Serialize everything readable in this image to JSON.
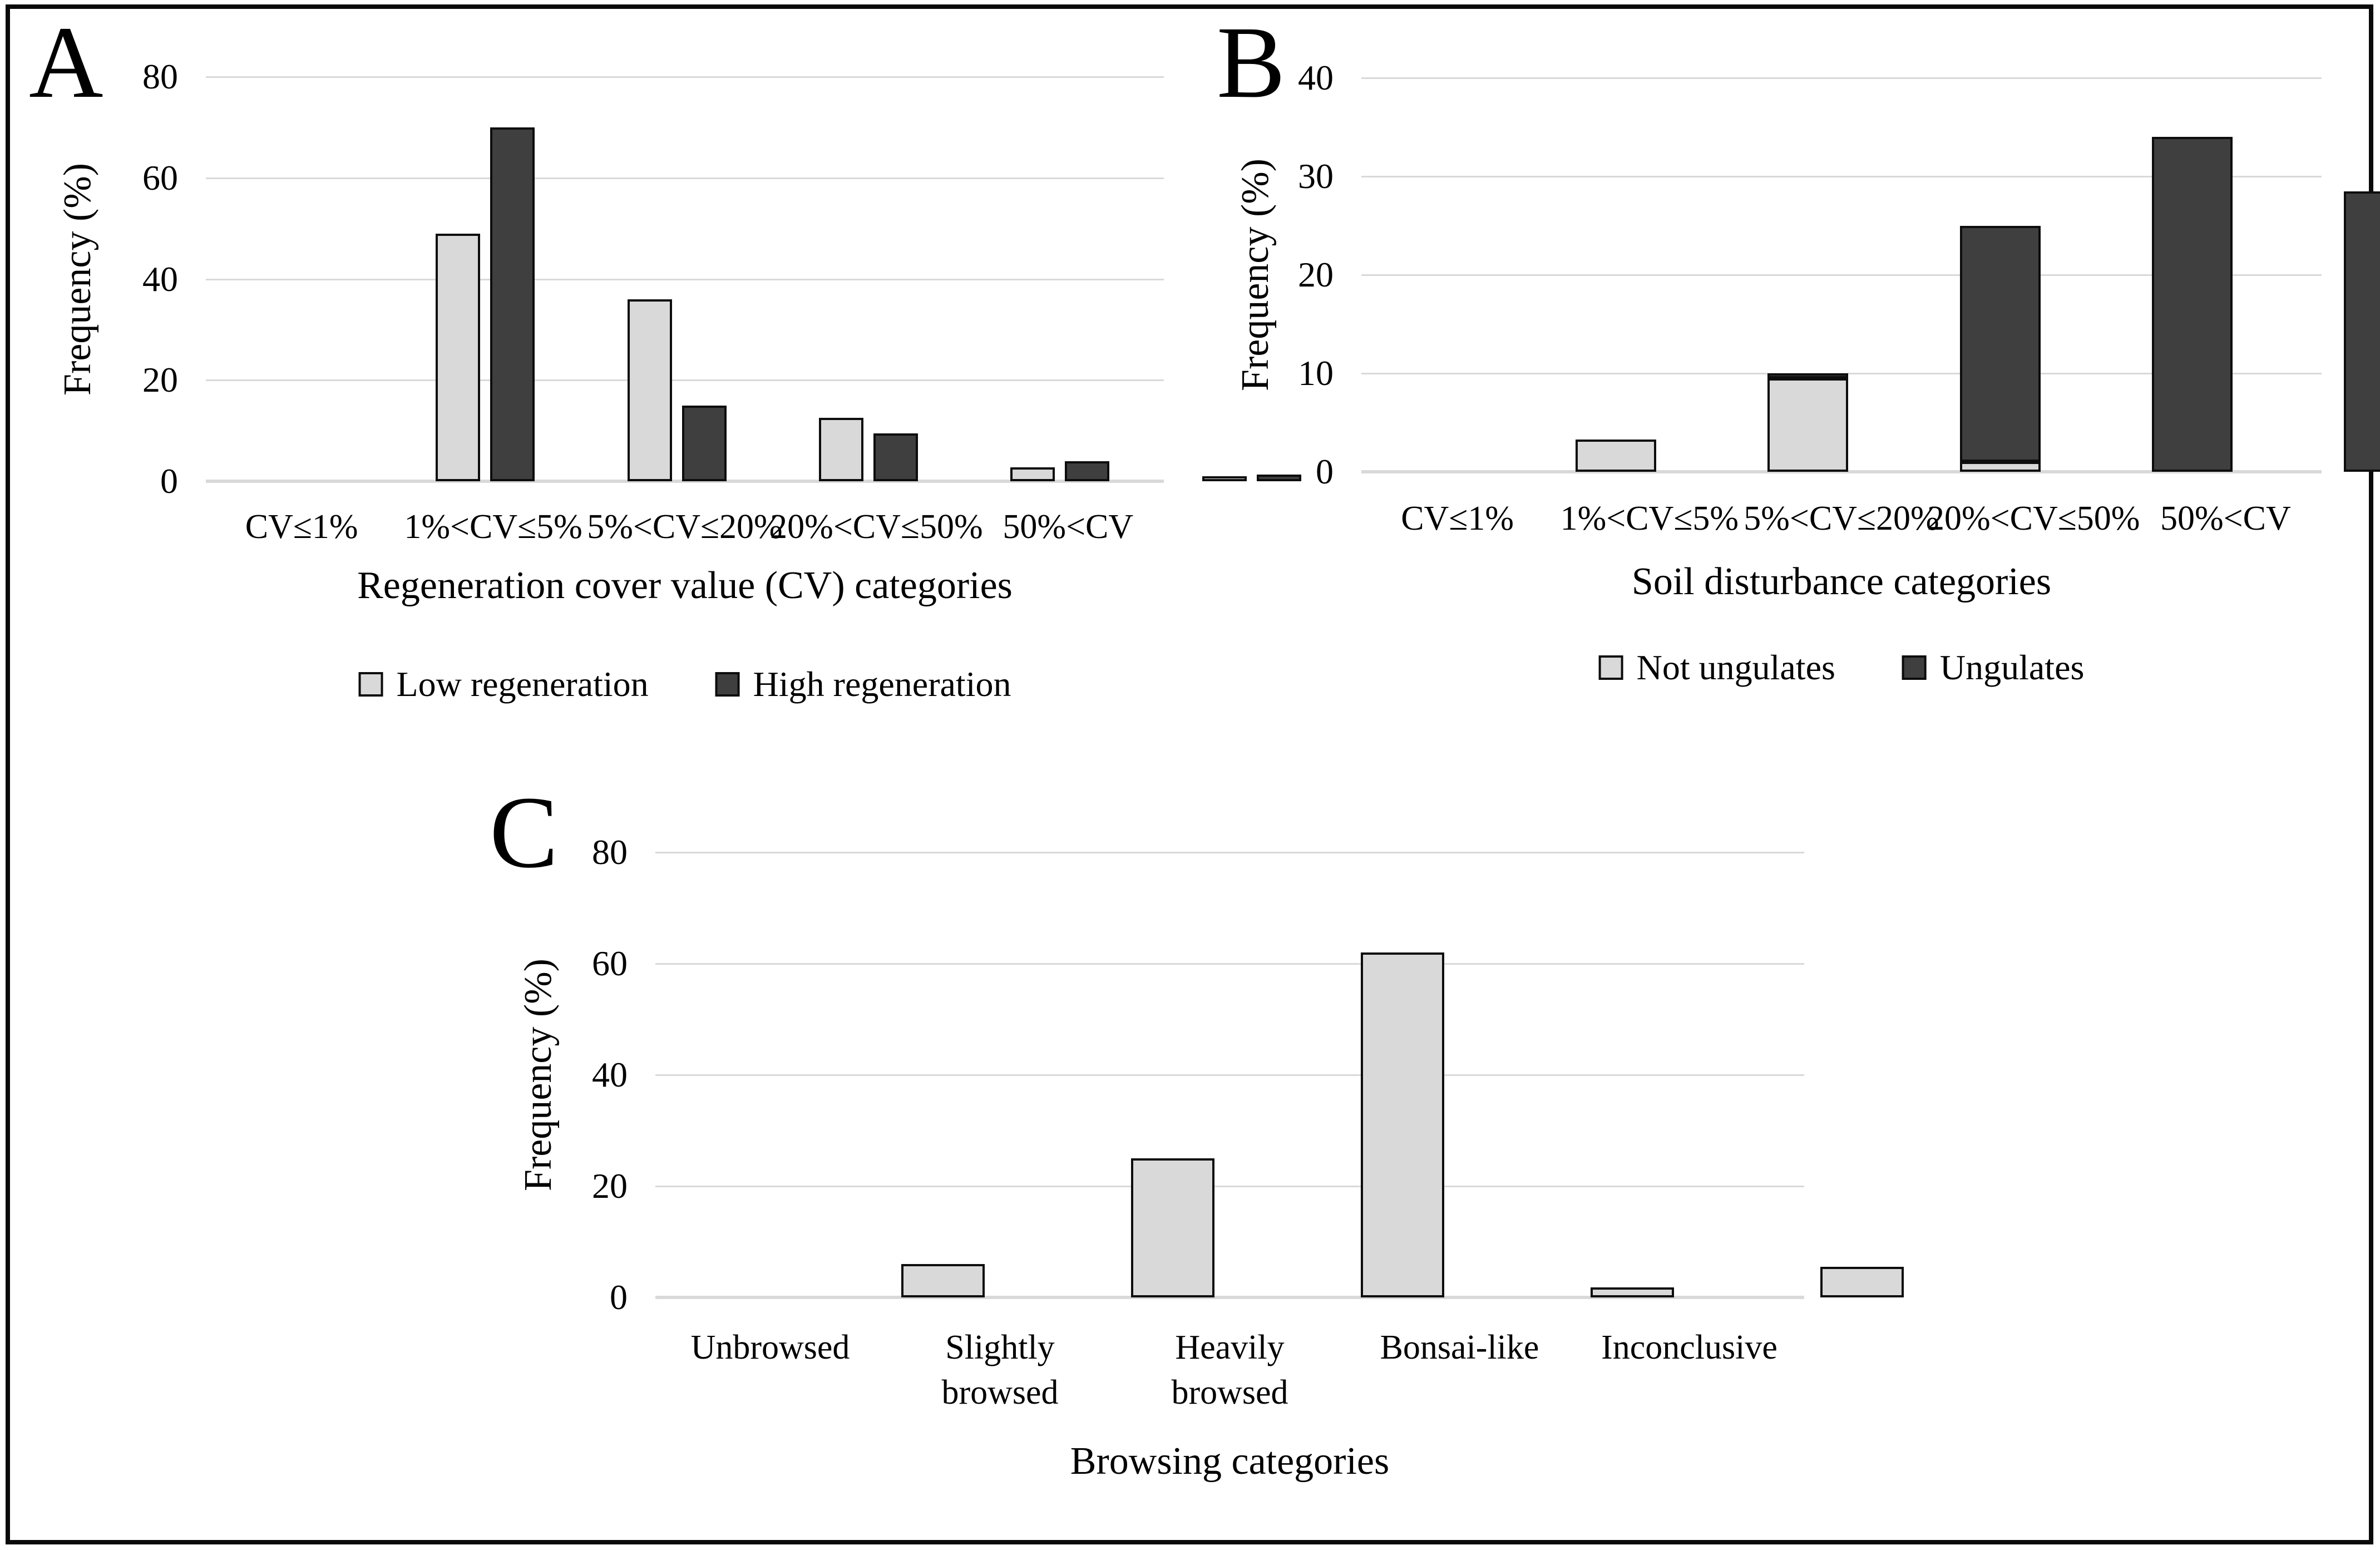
{
  "figure": {
    "background": "#ffffff",
    "frame_border_color": "#0a0a0a"
  },
  "colors": {
    "light": "#d9d9d9",
    "dark": "#3f3f3f",
    "bar_border": "#0d0d0d",
    "gridline": "#d9d9d9",
    "text": "#000000"
  },
  "chart_data": [
    {
      "panel_label": "A",
      "type": "bar",
      "title": "",
      "ylabel": "Frequency (%)",
      "xlabel": "Regeneration cover value (CV) categories",
      "ylim": [
        0,
        80
      ],
      "yticks": [
        0,
        20,
        40,
        60,
        80
      ],
      "grid": true,
      "legend_position": "bottom",
      "categories": [
        "CV≤1%",
        "1%<CV≤5%",
        "5%<CV≤20%",
        "20%<CV≤50%",
        "50%<CV"
      ],
      "series": [
        {
          "name": "Low regeneration",
          "color": "light",
          "values": [
            49,
            36,
            12.5,
            2.7,
            0.6
          ]
        },
        {
          "name": "High regeneration",
          "color": "dark",
          "values": [
            70,
            15,
            9.5,
            4,
            1.3
          ]
        }
      ]
    },
    {
      "panel_label": "B",
      "type": "stacked-bar",
      "title": "",
      "ylabel": "Frequency (%)",
      "xlabel": "Soil disturbance categories",
      "ylim": [
        0,
        40
      ],
      "yticks": [
        0,
        10,
        20,
        30,
        40
      ],
      "grid": true,
      "legend_position": "bottom",
      "categories": [
        "CV≤1%",
        "1%<CV≤5%",
        "5%<CV≤20%",
        "20%<CV≤50%",
        "50%<CV"
      ],
      "series": [
        {
          "name": "Not ungulates",
          "color": "light",
          "values": [
            3.3,
            9.5,
            1,
            0,
            0
          ]
        },
        {
          "name": "Ungulates",
          "color": "dark",
          "values": [
            0,
            0.4,
            24,
            34,
            28.5
          ]
        }
      ]
    },
    {
      "panel_label": "C",
      "type": "bar",
      "title": "",
      "ylabel": "Frequency (%)",
      "xlabel": "Browsing categories",
      "ylim": [
        0,
        80
      ],
      "yticks": [
        0,
        20,
        40,
        60,
        80
      ],
      "grid": true,
      "legend_position": "none",
      "categories": [
        "Unbrowsed",
        "Slightly browsed",
        "Heavily browsed",
        "Bonsai-like",
        "Inconclusive"
      ],
      "series": [
        {
          "name": "Frequency",
          "color": "light",
          "values": [
            6,
            25,
            62,
            1.8,
            5.5
          ]
        }
      ]
    }
  ]
}
